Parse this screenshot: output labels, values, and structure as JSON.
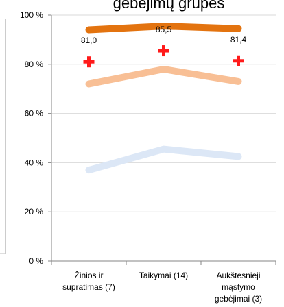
{
  "chart_data": {
    "type": "line",
    "title": "gebėjimų grupes",
    "categories": [
      "Žinios ir supratimas (7)",
      "Taikymai (14)",
      "Aukštesnieji mąstymo gebėjimai (3)"
    ],
    "category_lines": [
      [
        "Žinios ir",
        "supratimas (7)"
      ],
      [
        "Taikymai (14)"
      ],
      [
        "Aukštesnieji",
        "mąstymo",
        "gebėjimai (3)"
      ]
    ],
    "y_ticks": [
      "0 %",
      "20 %",
      "40 %",
      "60 %",
      "80 %",
      "100 %"
    ],
    "ylim": [
      0,
      100
    ],
    "grid": true,
    "series": [
      {
        "values": [
          94,
          95.5,
          94.5
        ],
        "color": "#e3730f",
        "marker": "none"
      },
      {
        "values": [
          72,
          78,
          73
        ],
        "color": "#f8bf95",
        "marker": "none"
      },
      {
        "values": [
          37,
          45.5,
          42.5
        ],
        "color": "#dce7f6",
        "marker": "none"
      },
      {
        "values": [
          81.0,
          85.5,
          81.4
        ],
        "color": "#ff1a1a",
        "marker": "cross",
        "labels": [
          "81,0",
          "85,5",
          "81,4"
        ]
      }
    ]
  }
}
